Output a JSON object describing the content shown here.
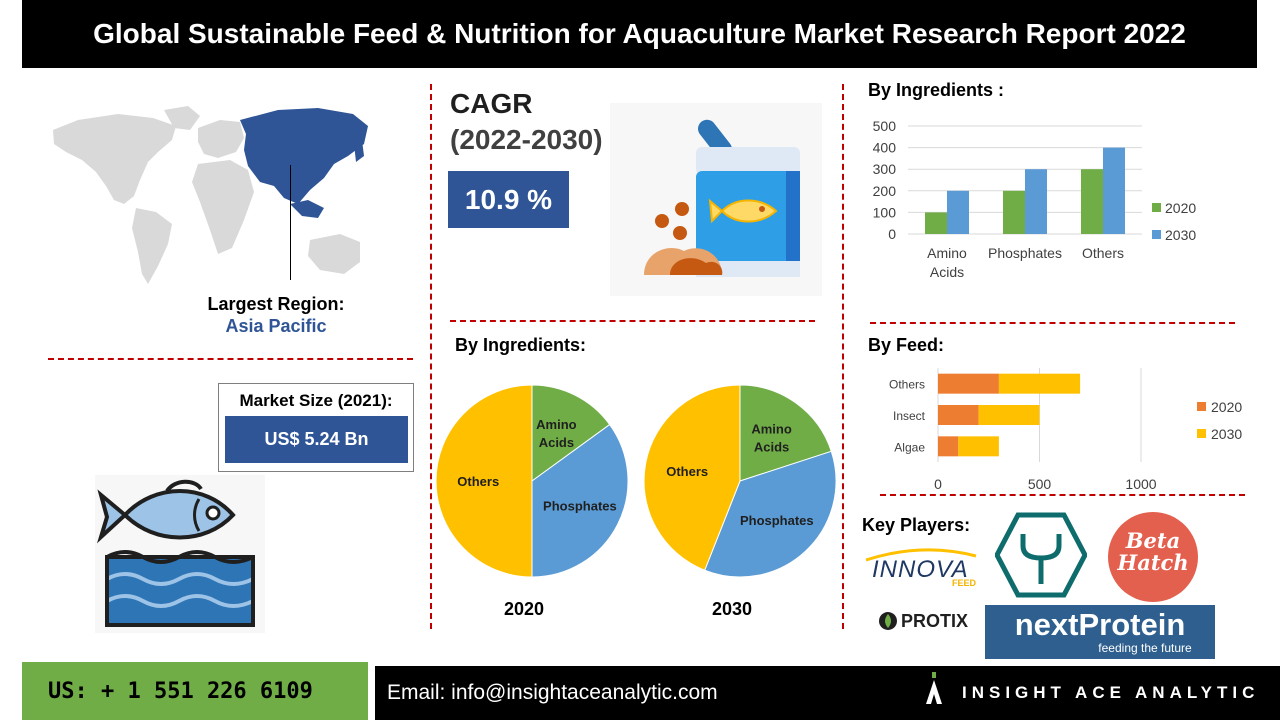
{
  "title": "Global Sustainable Feed & Nutrition for Aquaculture Market Research Report 2022",
  "region": {
    "label": "Largest Region:",
    "value": "Asia Pacific"
  },
  "market_size": {
    "label": "Market Size (2021):",
    "value": "US$ 5.24 Bn"
  },
  "cagr": {
    "label": "CAGR",
    "period": "(2022-2030)",
    "value": "10.9 %"
  },
  "sections": {
    "ingredients_bar": "By  Ingredients :",
    "ingredients_pie": "By  Ingredients:",
    "feed": "By Feed:",
    "key_players": "Key Players:"
  },
  "key_players": {
    "innova": "INNOVA",
    "innova_sub": "FEED",
    "beta_line1": "Beta",
    "beta_line2": "Hatch",
    "protix": "PROTIX",
    "next_protein": "nextProtein",
    "next_protein_sub": "feeding the future"
  },
  "footer": {
    "phone": "US: + 1 551 226 6109",
    "email": "Email: info@insightaceanalytic.com",
    "brand": "INSIGHT ACE ANALYTIC"
  },
  "colors": {
    "green": "#70ad47",
    "blue": "#5b9bd5",
    "orange": "#ed7d31",
    "yellow": "#ffc000",
    "navy": "#2f5597",
    "accent_red": "#c00000"
  },
  "chart_data": [
    {
      "type": "bar",
      "categories": [
        "Amino Acids",
        "Phosphates",
        "Others"
      ],
      "category_lines": [
        [
          "Amino",
          "Acids"
        ],
        [
          "Phosphates"
        ],
        [
          "Others"
        ]
      ],
      "series": [
        {
          "name": "2020",
          "values": [
            100,
            200,
            300
          ]
        },
        {
          "name": "2030",
          "values": [
            200,
            300,
            400
          ]
        }
      ],
      "yticks": [
        "0",
        "100",
        "200",
        "300",
        "400",
        "500"
      ],
      "ylim": [
        0,
        500
      ],
      "grid": true,
      "legend": "right"
    },
    {
      "type": "bar",
      "orientation": "horizontal",
      "stacked": true,
      "categories": [
        "Others",
        "Insect",
        "Algae"
      ],
      "series": [
        {
          "name": "2020",
          "values": [
            300,
            200,
            100
          ]
        },
        {
          "name": "2030",
          "values": [
            400,
            300,
            200
          ]
        }
      ],
      "xticks": [
        "0",
        "500",
        "1000"
      ],
      "xlim": [
        0,
        1000
      ],
      "grid": true,
      "legend": "right"
    },
    {
      "type": "pie",
      "caption": "2020",
      "labels": [
        "Amino Acids",
        "Phosphates",
        "Others"
      ],
      "label_lines": [
        [
          "Amino",
          "Acids"
        ],
        [
          "Phosphates"
        ],
        [
          "Others"
        ]
      ],
      "values": [
        15,
        35,
        50
      ]
    },
    {
      "type": "pie",
      "caption": "2030",
      "labels": [
        "Amino Acids",
        "Phosphates",
        "Others"
      ],
      "label_lines": [
        [
          "Amino",
          "Acids"
        ],
        [
          "Phosphates"
        ],
        [
          "Others"
        ]
      ],
      "values": [
        20,
        36,
        44
      ]
    }
  ]
}
